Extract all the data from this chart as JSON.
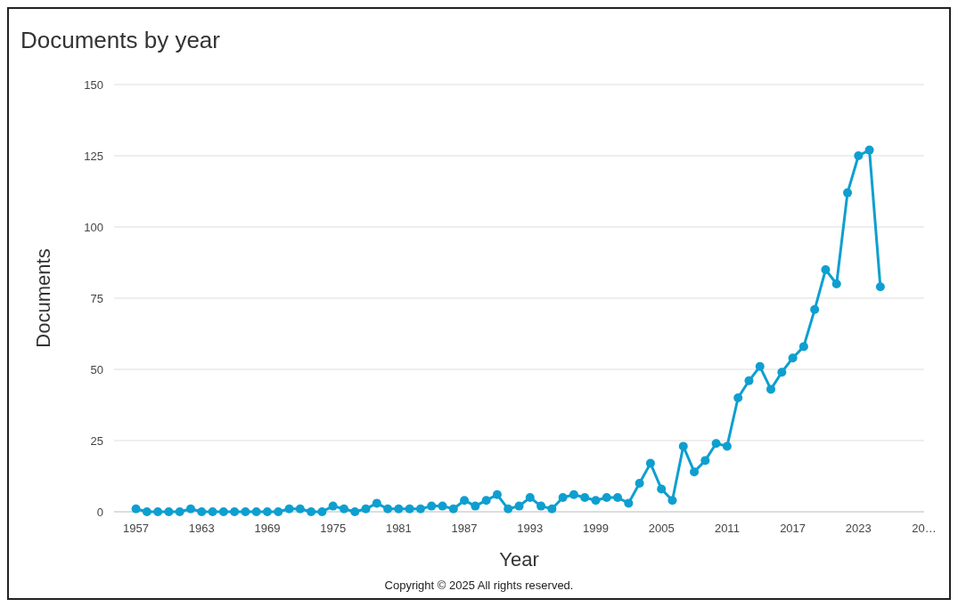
{
  "chart_data": {
    "type": "line",
    "title": "Documents by year",
    "xlabel": "Year",
    "ylabel": "Documents",
    "x": [
      1957,
      1958,
      1959,
      1960,
      1961,
      1962,
      1963,
      1964,
      1965,
      1966,
      1967,
      1968,
      1969,
      1970,
      1971,
      1972,
      1973,
      1974,
      1975,
      1976,
      1977,
      1978,
      1979,
      1980,
      1981,
      1982,
      1983,
      1984,
      1985,
      1986,
      1987,
      1988,
      1989,
      1990,
      1991,
      1992,
      1993,
      1994,
      1995,
      1996,
      1997,
      1998,
      1999,
      2000,
      2001,
      2002,
      2003,
      2004,
      2005,
      2006,
      2007,
      2008,
      2009,
      2010,
      2011,
      2012,
      2013,
      2014,
      2015,
      2016,
      2017,
      2018,
      2019,
      2020,
      2021,
      2022,
      2023,
      2024,
      2025
    ],
    "series": [
      {
        "color": "#0e9fd0",
        "values": [
          1,
          0,
          0,
          0,
          0,
          1,
          0,
          0,
          0,
          0,
          0,
          0,
          0,
          0,
          1,
          1,
          0,
          0,
          2,
          1,
          0,
          1,
          3,
          1,
          1,
          1,
          1,
          2,
          2,
          1,
          4,
          2,
          4,
          6,
          1,
          2,
          5,
          2,
          1,
          5,
          6,
          5,
          4,
          5,
          5,
          3,
          10,
          17,
          8,
          4,
          23,
          14,
          18,
          24,
          23,
          40,
          46,
          51,
          43,
          49,
          54,
          58,
          71,
          85,
          80,
          112,
          125,
          127,
          79
        ]
      }
    ],
    "xlim": [
      1955,
      2029
    ],
    "xticks": [
      1957,
      1963,
      1969,
      1975,
      1981,
      1987,
      1993,
      1999,
      2005,
      2011,
      2017,
      2023,
      {
        "value": 2029,
        "label": "20…"
      }
    ],
    "ylim": [
      0,
      150
    ],
    "yticks": [
      0,
      25,
      50,
      75,
      100,
      125,
      150
    ],
    "grid": "y",
    "marker": "circle",
    "line_style": "solid",
    "annotations": [
      "Copyright © 2025 All rights reserved."
    ]
  }
}
